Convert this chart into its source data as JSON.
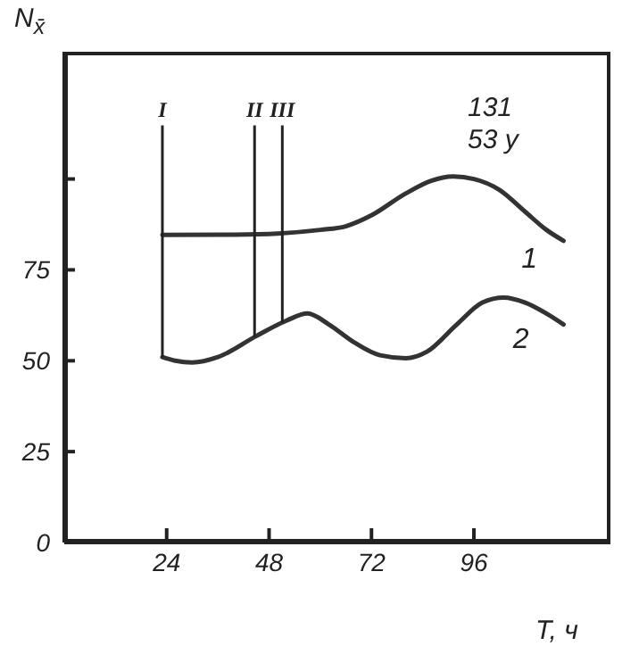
{
  "chart_data": {
    "type": "line",
    "xlabel": "T, ч",
    "ylabel": "N$_{x̄}$",
    "xlim": [
      0,
      128
    ],
    "xticks": [
      24,
      48,
      72,
      96
    ],
    "ylim": [
      0,
      135
    ],
    "yticks": [
      0,
      25,
      50,
      75,
      {
        "value": 100,
        "label": null
      }
    ],
    "series": [
      {
        "color": "#333333",
        "x": [
          23,
          40,
          50,
          60,
          66,
          72,
          80,
          86,
          91,
          96,
          102,
          108,
          113,
          117
        ],
        "values": [
          84.6,
          84.7,
          85,
          86,
          87,
          90,
          96,
          99.5,
          100.7,
          100,
          97,
          91,
          86,
          83
        ]
      },
      {
        "color": "#333333",
        "x": [
          23,
          26,
          30,
          36,
          45,
          52,
          57,
          62,
          68,
          74,
          80,
          85,
          92,
          98,
          103,
          108,
          113,
          117
        ],
        "values": [
          51,
          50,
          49.5,
          51,
          56.8,
          61,
          63,
          60,
          55,
          51.5,
          50.7,
          52.5,
          60,
          66,
          67.4,
          66,
          63,
          60
        ]
      }
    ],
    "ref_lines": [
      {
        "axis": "x",
        "value": 23,
        "label": "I"
      },
      {
        "axis": "x",
        "value": 44.6,
        "label": "II"
      },
      {
        "axis": "x",
        "value": 51.1,
        "label": "III"
      }
    ],
    "annotations": [
      {
        "text": "1",
        "x": 109,
        "y": 88
      },
      {
        "text": "2",
        "x": 107,
        "y": 66
      },
      "131",
      "53 у"
    ],
    "grid": false,
    "marker": "none",
    "line_style": "solid"
  }
}
